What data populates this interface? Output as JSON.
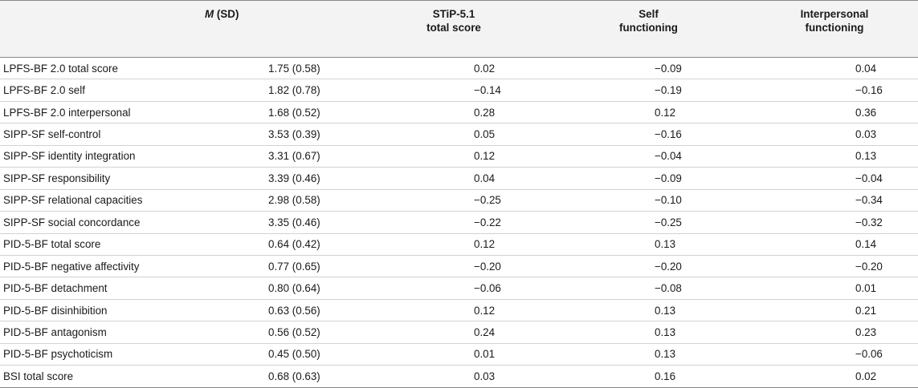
{
  "table": {
    "headers": {
      "variable": "",
      "mean_sd_italic": "M",
      "mean_sd_rest": " (SD)",
      "stip_line1": "STiP-5.1",
      "stip_line2": "total score",
      "self_line1": "Self",
      "self_line2": "functioning",
      "inter_line1": "Interpersonal",
      "inter_line2": "functioning"
    },
    "rows": [
      {
        "variable": "LPFS-BF 2.0 total score",
        "m_sd": "1.75 (0.58)",
        "stip": "0.02",
        "self": "−0.09",
        "inter": "0.04"
      },
      {
        "variable": "LPFS-BF 2.0 self",
        "m_sd": "1.82 (0.78)",
        "stip": "−0.14",
        "self": "−0.19",
        "inter": "−0.16"
      },
      {
        "variable": "LPFS-BF 2.0 interpersonal",
        "m_sd": "1.68 (0.52)",
        "stip": "0.28",
        "self": "0.12",
        "inter": "0.36"
      },
      {
        "variable": "SIPP-SF self-control",
        "m_sd": "3.53 (0.39)",
        "stip": "0.05",
        "self": "−0.16",
        "inter": "0.03"
      },
      {
        "variable": "SIPP-SF identity integration",
        "m_sd": "3.31 (0.67)",
        "stip": "0.12",
        "self": "−0.04",
        "inter": "0.13"
      },
      {
        "variable": "SIPP-SF responsibility",
        "m_sd": "3.39 (0.46)",
        "stip": "0.04",
        "self": "−0.09",
        "inter": "−0.04"
      },
      {
        "variable": "SIPP-SF relational capacities",
        "m_sd": "2.98 (0.58)",
        "stip": "−0.25",
        "self": "−0.10",
        "inter": "−0.34"
      },
      {
        "variable": "SIPP-SF social concordance",
        "m_sd": "3.35 (0.46)",
        "stip": "−0.22",
        "self": "−0.25",
        "inter": "−0.32"
      },
      {
        "variable": "PID-5-BF total score",
        "m_sd": "0.64 (0.42)",
        "stip": "0.12",
        "self": "0.13",
        "inter": "0.14"
      },
      {
        "variable": "PID-5-BF negative affectivity",
        "m_sd": "0.77 (0.65)",
        "stip": "−0.20",
        "self": "−0.20",
        "inter": "−0.20"
      },
      {
        "variable": "PID-5-BF detachment",
        "m_sd": "0.80 (0.64)",
        "stip": "−0.06",
        "self": "−0.08",
        "inter": "0.01"
      },
      {
        "variable": "PID-5-BF disinhibition",
        "m_sd": "0.63 (0.56)",
        "stip": "0.12",
        "self": "0.13",
        "inter": "0.21"
      },
      {
        "variable": "PID-5-BF antagonism",
        "m_sd": "0.56 (0.52)",
        "stip": "0.24",
        "self": "0.13",
        "inter": "0.23"
      },
      {
        "variable": "PID-5-BF psychoticism",
        "m_sd": "0.45 (0.50)",
        "stip": "0.01",
        "self": "0.13",
        "inter": "−0.06"
      },
      {
        "variable": "BSI total score",
        "m_sd": "0.68 (0.63)",
        "stip": "0.03",
        "self": "0.16",
        "inter": "0.02"
      }
    ]
  }
}
